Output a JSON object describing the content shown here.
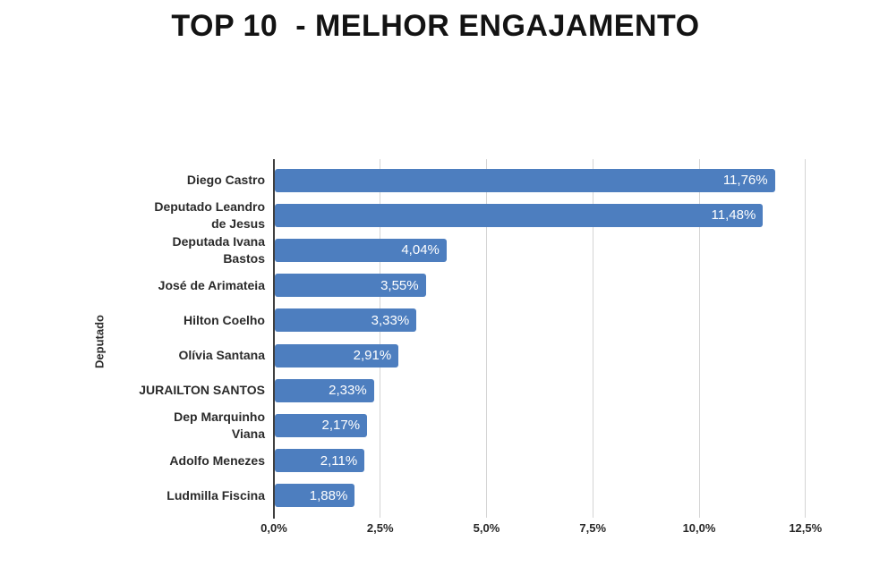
{
  "title": "TOP 10  - MELHOR ENGAJAMENTO",
  "colors": {
    "bar": "#4d7ebf",
    "bar_value_text": "#ffffff",
    "grid": "#d4d4d4",
    "axis": "#3f3f3f",
    "label_text": "#2b2b2b",
    "title_text": "#131313",
    "background": "#ffffff"
  },
  "chart_data": {
    "type": "bar",
    "orientation": "horizontal",
    "title": "TOP 10  - MELHOR ENGAJAMENTO",
    "xlabel": "",
    "ylabel": "Deputado",
    "categories": [
      "Diego Castro",
      "Deputado Leandro de Jesus",
      "Deputada Ivana Bastos",
      "José de Arimateia",
      "Hilton Coelho",
      "Olívia Santana",
      "JURAILTON SANTOS",
      "Dep Marquinho Viana",
      "Adolfo Menezes",
      "Ludmilla Fiscina"
    ],
    "category_lines": [
      [
        "Diego Castro"
      ],
      [
        "Deputado Leandro",
        "de Jesus"
      ],
      [
        "Deputada Ivana",
        "Bastos"
      ],
      [
        "José de Arimateia"
      ],
      [
        "Hilton Coelho"
      ],
      [
        "Olívia Santana"
      ],
      [
        "JURAILTON SANTOS"
      ],
      [
        "Dep Marquinho",
        "Viana"
      ],
      [
        "Adolfo Menezes"
      ],
      [
        "Ludmilla Fiscina"
      ]
    ],
    "values": [
      11.76,
      11.48,
      4.04,
      3.55,
      3.33,
      2.91,
      2.33,
      2.17,
      2.11,
      1.88
    ],
    "value_labels": [
      "11,76%",
      "11,48%",
      "4,04%",
      "3,55%",
      "3,33%",
      "2,91%",
      "2,33%",
      "2,17%",
      "2,11%",
      "1,88%"
    ],
    "x_ticks": [
      0,
      2.5,
      5,
      7.5,
      10,
      12.5
    ],
    "x_tick_labels": [
      "0,0%",
      "2,5%",
      "5,0%",
      "7,5%",
      "10,0%",
      "12,5%"
    ],
    "xlim": [
      0,
      13.35
    ],
    "grid": true,
    "legend": false
  }
}
